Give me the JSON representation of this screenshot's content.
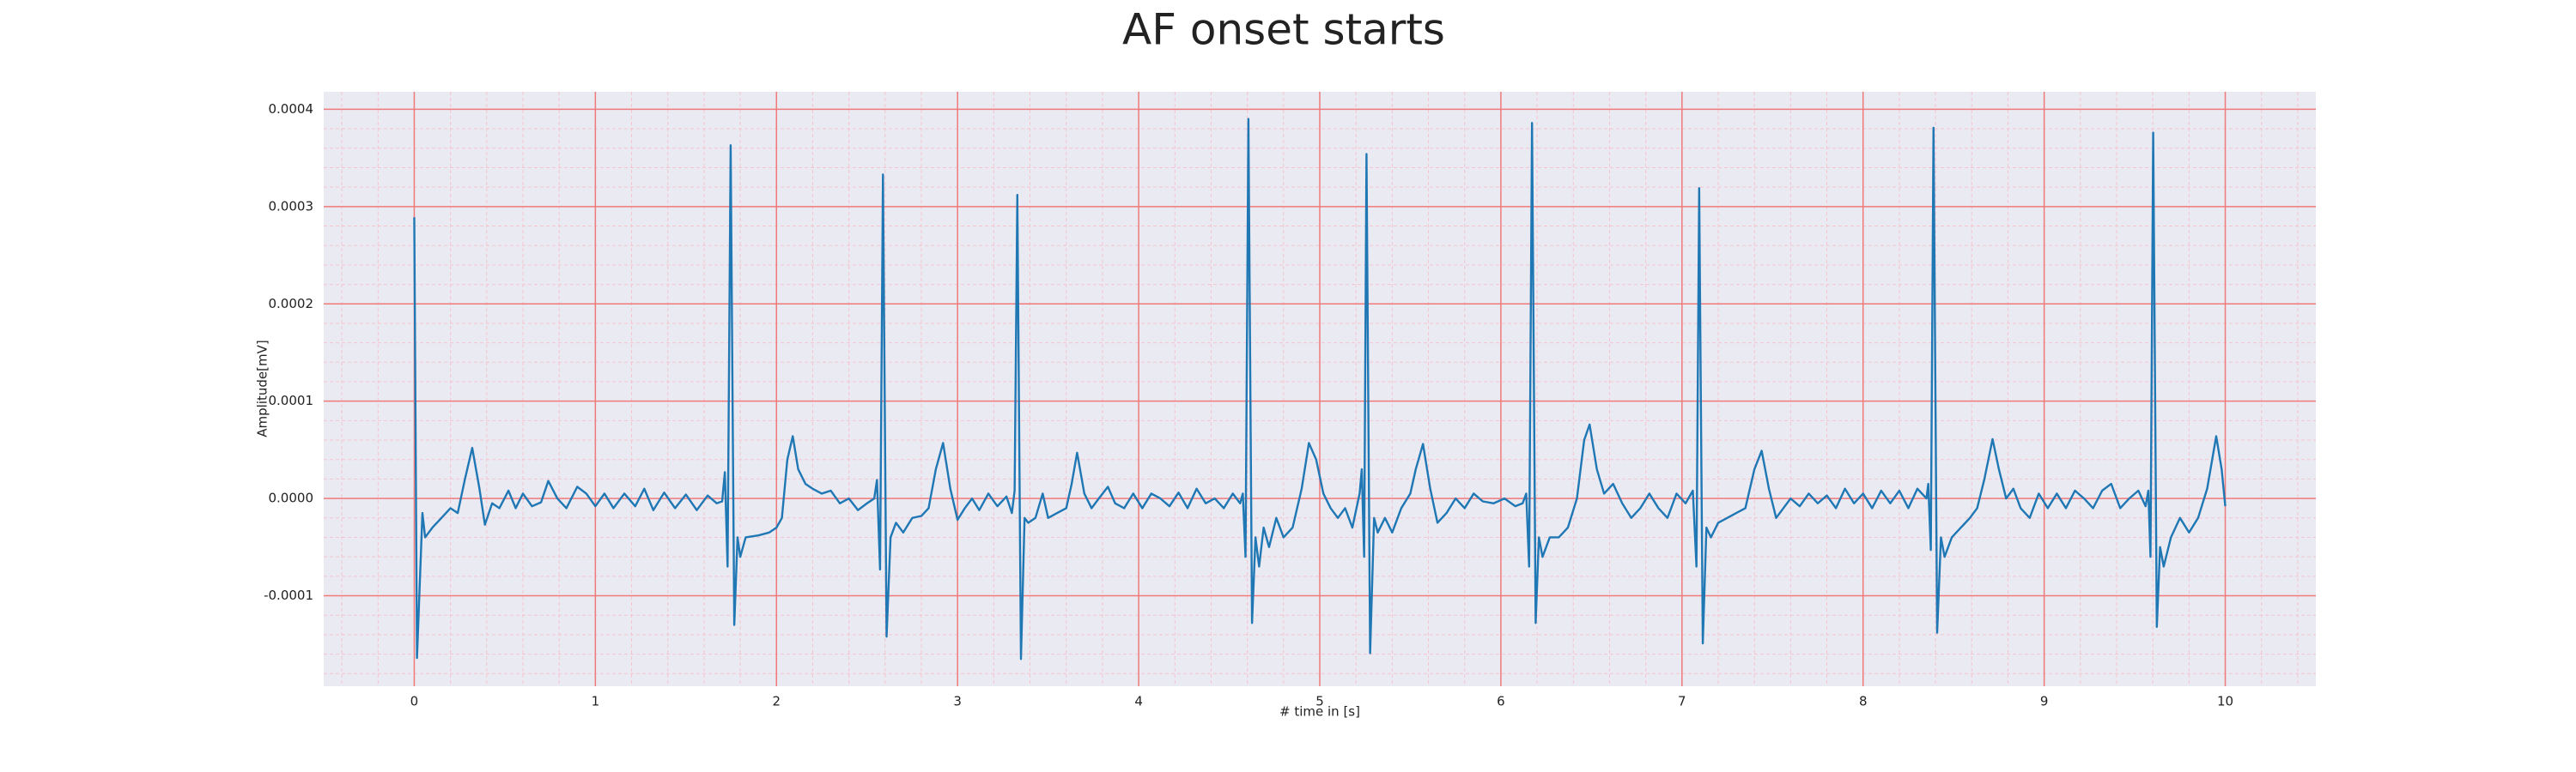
{
  "chart_data": {
    "type": "line",
    "title": "AF onset starts",
    "xlabel": "# time in [s]",
    "ylabel": "Amplitude[mV]",
    "color": "#1f77b4",
    "grid": true,
    "minor_grid": true,
    "xlim": [
      -0.5,
      10.5
    ],
    "ylim": [
      -0.000193,
      0.000418
    ],
    "xticks": [
      0,
      1,
      2,
      3,
      4,
      5,
      6,
      7,
      8,
      9,
      10
    ],
    "yticks": [
      {
        "value": -0.0001,
        "label": "-0.0001"
      },
      {
        "value": 0,
        "label": "0.0000"
      },
      0.0001,
      0.0002,
      0.0003,
      0.0004
    ],
    "x": [
      0,
      0.015,
      0.045,
      0.06,
      0.1,
      0.15,
      0.2,
      0.24,
      0.28,
      0.32,
      0.36,
      0.39,
      0.43,
      0.47,
      0.52,
      0.56,
      0.6,
      0.65,
      0.7,
      0.74,
      0.79,
      0.84,
      0.9,
      0.95,
      1.0,
      1.05,
      1.1,
      1.16,
      1.22,
      1.27,
      1.32,
      1.38,
      1.44,
      1.5,
      1.56,
      1.62,
      1.67,
      1.7,
      1.715,
      1.73,
      1.747,
      1.767,
      1.785,
      1.8,
      1.83,
      1.9,
      1.96,
      2.0,
      2.03,
      2.06,
      2.09,
      2.12,
      2.16,
      2.2,
      2.25,
      2.3,
      2.35,
      2.4,
      2.45,
      2.5,
      2.54,
      2.555,
      2.572,
      2.588,
      2.608,
      2.63,
      2.66,
      2.7,
      2.75,
      2.8,
      2.84,
      2.88,
      2.92,
      2.96,
      3.0,
      3.04,
      3.08,
      3.12,
      3.17,
      3.22,
      3.27,
      3.3,
      3.315,
      3.33,
      3.35,
      3.37,
      3.39,
      3.43,
      3.47,
      3.5,
      3.55,
      3.6,
      3.63,
      3.66,
      3.7,
      3.74,
      3.78,
      3.83,
      3.87,
      3.92,
      3.97,
      4.02,
      4.07,
      4.12,
      4.17,
      4.22,
      4.27,
      4.32,
      4.37,
      4.42,
      4.47,
      4.52,
      4.56,
      4.575,
      4.59,
      4.606,
      4.626,
      4.645,
      4.665,
      4.69,
      4.72,
      4.76,
      4.8,
      4.85,
      4.9,
      4.94,
      4.98,
      5.02,
      5.06,
      5.1,
      5.14,
      5.18,
      5.22,
      5.232,
      5.245,
      5.258,
      5.278,
      5.3,
      5.32,
      5.36,
      5.4,
      5.45,
      5.5,
      5.53,
      5.57,
      5.61,
      5.65,
      5.7,
      5.75,
      5.8,
      5.85,
      5.9,
      5.96,
      6.02,
      6.08,
      6.12,
      6.14,
      6.156,
      6.172,
      6.192,
      6.21,
      6.23,
      6.27,
      6.32,
      6.37,
      6.42,
      6.46,
      6.49,
      6.53,
      6.57,
      6.62,
      6.67,
      6.72,
      6.77,
      6.82,
      6.87,
      6.92,
      6.97,
      7.02,
      7.06,
      7.08,
      7.095,
      7.115,
      7.135,
      7.16,
      7.2,
      7.25,
      7.3,
      7.35,
      7.4,
      7.44,
      7.48,
      7.52,
      7.56,
      7.6,
      7.65,
      7.7,
      7.75,
      7.8,
      7.85,
      7.9,
      7.95,
      8.0,
      8.05,
      8.1,
      8.15,
      8.2,
      8.25,
      8.3,
      8.35,
      8.36,
      8.374,
      8.389,
      8.409,
      8.43,
      8.45,
      8.49,
      8.54,
      8.59,
      8.63,
      8.67,
      8.715,
      8.75,
      8.79,
      8.83,
      8.87,
      8.92,
      8.97,
      9.02,
      9.07,
      9.12,
      9.17,
      9.22,
      9.27,
      9.32,
      9.37,
      9.42,
      9.47,
      9.52,
      9.56,
      9.575,
      9.587,
      9.602,
      9.622,
      9.64,
      9.66,
      9.7,
      9.75,
      9.8,
      9.85,
      9.9,
      9.95,
      9.98,
      10.0
    ],
    "values": [
      0.000289,
      -0.000164,
      -1.5e-05,
      -4e-05,
      -3e-05,
      -2e-05,
      -1e-05,
      -1.5e-05,
      2e-05,
      5.2e-05,
      1e-05,
      -2.7e-05,
      -5e-06,
      -1e-05,
      8e-06,
      -1e-05,
      5e-06,
      -8e-06,
      -4e-06,
      1.8e-05,
      0,
      -1e-05,
      1.2e-05,
      5e-06,
      -8e-06,
      5e-06,
      -1e-05,
      5e-06,
      -8e-06,
      1e-05,
      -1.2e-05,
      6e-06,
      -1e-05,
      4e-06,
      -1.2e-05,
      3e-06,
      -5e-06,
      -3e-06,
      2.7e-05,
      -7e-05,
      0.000363,
      -0.00013,
      -4e-05,
      -6e-05,
      -4e-05,
      -3.8e-05,
      -3.5e-05,
      -3e-05,
      -2e-05,
      4e-05,
      6.4e-05,
      3e-05,
      1.5e-05,
      1e-05,
      5e-06,
      8e-06,
      -5e-06,
      0,
      -1.2e-05,
      -5e-06,
      0,
      1.9e-05,
      -7.3e-05,
      0.000333,
      -0.000142,
      -4e-05,
      -2.5e-05,
      -3.5e-05,
      -2e-05,
      -1.8e-05,
      -1e-05,
      3e-05,
      5.7e-05,
      1e-05,
      -2.2e-05,
      -1e-05,
      0,
      -1.2e-05,
      5e-06,
      -8e-06,
      2e-06,
      -1.5e-05,
      8e-06,
      0.000312,
      -0.000165,
      -2e-05,
      -2.5e-05,
      -2e-05,
      5e-06,
      -2e-05,
      -1.5e-05,
      -1e-05,
      1.5e-05,
      4.7e-05,
      5e-06,
      -1e-05,
      0,
      1.2e-05,
      -5e-06,
      -1e-05,
      5e-06,
      -1e-05,
      5e-06,
      0,
      -8e-06,
      6e-06,
      -1e-05,
      1e-05,
      -5e-06,
      0,
      -1e-05,
      5e-06,
      -5e-06,
      5e-06,
      -6e-05,
      0.00039,
      -0.000128,
      -4e-05,
      -7e-05,
      -3e-05,
      -5e-05,
      -2e-05,
      -4e-05,
      -3e-05,
      1e-05,
      5.7e-05,
      4e-05,
      5e-06,
      -1e-05,
      -2e-05,
      -1e-05,
      -3e-05,
      5e-06,
      3e-05,
      -6e-05,
      0.000354,
      -0.000159,
      -2e-05,
      -3.5e-05,
      -2e-05,
      -3.5e-05,
      -1e-05,
      5e-06,
      3e-05,
      5.6e-05,
      1e-05,
      -2.5e-05,
      -1.5e-05,
      0,
      -1e-05,
      5e-06,
      -3e-06,
      -5e-06,
      0,
      -8e-06,
      -5e-06,
      5e-06,
      -7e-05,
      0.000386,
      -0.000128,
      -4e-05,
      -6e-05,
      -4e-05,
      -4e-05,
      -3e-05,
      0,
      6e-05,
      7.6e-05,
      3e-05,
      5e-06,
      1.5e-05,
      -5e-06,
      -2e-05,
      -1e-05,
      5e-06,
      -1e-05,
      -2e-05,
      5e-06,
      -5e-06,
      8e-06,
      -7e-05,
      0.000319,
      -0.000149,
      -3e-05,
      -4e-05,
      -2.5e-05,
      -2e-05,
      -1.5e-05,
      -1e-05,
      3e-05,
      4.9e-05,
      1e-05,
      -2e-05,
      -1e-05,
      0,
      -8e-06,
      5e-06,
      -5e-06,
      3e-06,
      -1e-05,
      1e-05,
      -5e-06,
      5e-06,
      -1e-05,
      8e-06,
      -5e-06,
      8e-06,
      -1e-05,
      1e-05,
      0,
      1.5e-05,
      -5.3e-05,
      0.000381,
      -0.000138,
      -4e-05,
      -6e-05,
      -4e-05,
      -3e-05,
      -2e-05,
      -1e-05,
      2e-05,
      6.1e-05,
      3e-05,
      0,
      1e-05,
      -1e-05,
      -2e-05,
      5e-06,
      -1e-05,
      5e-06,
      -1e-05,
      8e-06,
      0,
      -1e-05,
      8e-06,
      1.5e-05,
      -1e-05,
      0,
      8e-06,
      -8e-06,
      8e-06,
      -6e-05,
      0.000376,
      -0.000132,
      -5e-05,
      -7e-05,
      -4e-05,
      -2e-05,
      -3.5e-05,
      -2e-05,
      1e-05,
      6.4e-05,
      3e-05,
      -8e-06
    ]
  }
}
